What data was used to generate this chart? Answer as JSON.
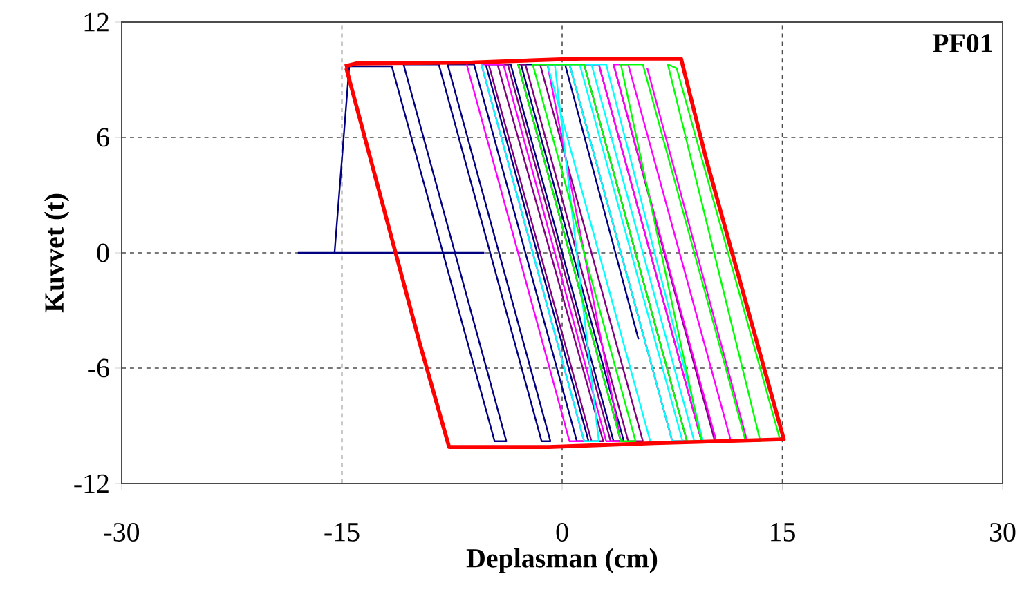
{
  "chart_data": {
    "type": "line",
    "xlabel": "Deplasman (cm)",
    "ylabel": "Kuvvet (t)",
    "annotations": [
      "PF01"
    ],
    "xlim": [
      -30,
      30
    ],
    "ylim": [
      -12,
      12
    ],
    "xticks": [
      -30,
      -15,
      0,
      15,
      30
    ],
    "yticks": [
      -12,
      -6,
      0,
      6,
      12
    ],
    "grid": true,
    "marker": "none",
    "line_style": "solid",
    "series": [
      {
        "color": "#000080",
        "x": [
          -18,
          -15.5,
          -14.5,
          -11.6,
          -4.6,
          -3.8,
          -10.8,
          -8.4,
          -1.4,
          -0.8,
          -7.8,
          -6.0,
          1.0,
          1.8,
          -5.2,
          -3.5,
          3.5,
          4.2,
          -2.8,
          0.2,
          5.2,
          null,
          -15.5,
          -5.3
        ],
        "values": [
          0,
          0,
          9.7,
          9.7,
          -9.8,
          -9.8,
          9.8,
          9.8,
          -9.8,
          -9.8,
          9.8,
          9.8,
          -9.8,
          -9.8,
          9.8,
          9.8,
          -9.8,
          -9.8,
          9.8,
          9.8,
          -4.5,
          null,
          0,
          0
        ]
      },
      {
        "color": "#800080",
        "x": [
          -5.0,
          2.0,
          2.8,
          -4.4,
          -3.7,
          3.3,
          4.0,
          -3.0,
          -2.5,
          4.5,
          5.5,
          -1.5,
          0.5,
          7.5,
          8.5,
          1.5,
          2.5,
          9.5,
          10.4,
          3.5
        ],
        "values": [
          9.8,
          -9.8,
          -9.8,
          9.8,
          9.8,
          -9.8,
          -9.8,
          9.8,
          9.8,
          -9.8,
          -9.8,
          9.8,
          9.8,
          -9.8,
          -9.8,
          9.8,
          9.8,
          -9.8,
          -9.8,
          9.8
        ]
      },
      {
        "color": "#ff00ff",
        "x": [
          -6.5,
          0.5,
          1.5,
          -5.5,
          -4.0,
          3.0,
          4.0,
          -1.0,
          2.5,
          9.5,
          10.5,
          3.5,
          4.5,
          11.5,
          12.6,
          5.8
        ],
        "values": [
          9.8,
          -9.8,
          -9.8,
          9.8,
          9.8,
          -9.8,
          -9.8,
          9.8,
          9.8,
          -9.8,
          -9.8,
          9.8,
          9.8,
          -9.8,
          -9.8,
          9.6
        ]
      },
      {
        "color": "#00ffff",
        "x": [
          -5.5,
          1.5,
          2.5,
          -0.5,
          0.5,
          7.5,
          8.2,
          1.2,
          2.0,
          9.0,
          9.6,
          3.0,
          -1.0,
          6.0
        ],
        "values": [
          9.8,
          -9.8,
          -9.8,
          9.8,
          9.8,
          -9.8,
          -9.8,
          9.8,
          9.8,
          -9.8,
          -9.8,
          9.8,
          9.8,
          -9.8
        ]
      },
      {
        "color": "#00ff00",
        "x": [
          -3.0,
          4.0,
          5.0,
          -2.0,
          1.5,
          8.5,
          9.5,
          4.0,
          5.5,
          12.5,
          13.5,
          7.2,
          7.8,
          14.8,
          15.2
        ],
        "values": [
          9.8,
          -9.8,
          -9.8,
          9.8,
          9.8,
          -9.8,
          -9.8,
          9.8,
          9.8,
          -9.8,
          -9.8,
          9.8,
          9.6,
          -9.6,
          -9.7
        ]
      },
      {
        "color": "#ff0000",
        "x": [
          -14.8,
          -14.0,
          -6.1,
          1.3,
          8.1,
          9.8,
          15.1,
          6.3,
          -0.9,
          -7.7,
          -9.7,
          -14.7
        ],
        "values": [
          9.7,
          9.85,
          9.9,
          10.1,
          10.1,
          4.9,
          -9.7,
          -9.9,
          -10.1,
          -10.1,
          -4.7,
          9.6
        ]
      }
    ]
  }
}
